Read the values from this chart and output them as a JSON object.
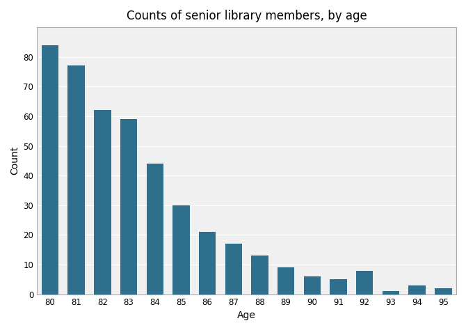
{
  "title": "Counts of senior library members, by age",
  "xlabel": "Age",
  "ylabel": "Count",
  "ages": [
    80,
    81,
    82,
    83,
    84,
    85,
    86,
    87,
    88,
    89,
    90,
    91,
    92,
    93,
    94,
    95
  ],
  "counts": [
    84,
    77,
    62,
    59,
    44,
    30,
    21,
    17,
    13,
    9,
    6,
    5,
    8,
    1,
    3,
    2
  ],
  "bar_color": "#2e6f8e",
  "ylim": [
    0,
    90
  ],
  "yticks": [
    0,
    10,
    20,
    30,
    40,
    50,
    60,
    70,
    80
  ],
  "background_color": "#ffffff",
  "plot_bg_color": "#f0f0f0",
  "grid_color": "#ffffff",
  "title_fontsize": 12,
  "label_fontsize": 10,
  "bar_width": 0.65,
  "spine_color": "#aaaaaa"
}
